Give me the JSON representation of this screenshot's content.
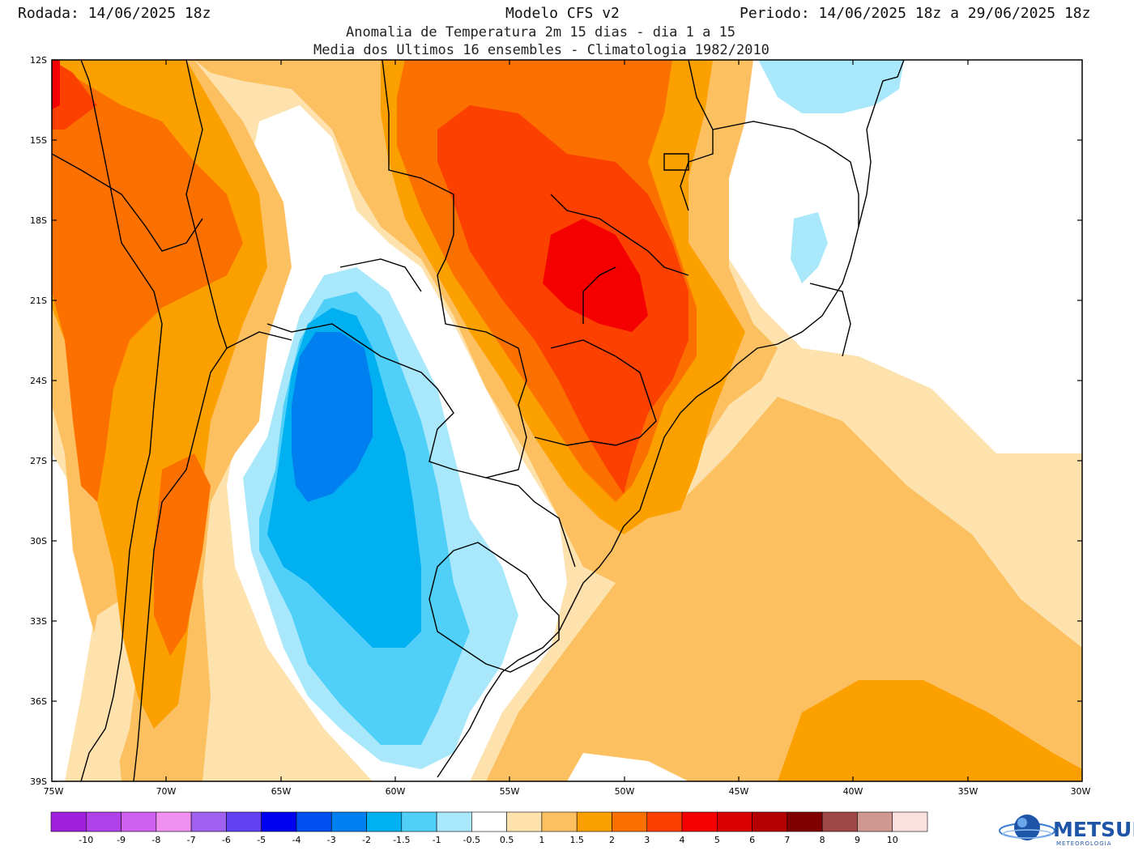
{
  "header": {
    "run_label": "Rodada: 14/06/2025 18z",
    "model_label": "Modelo CFS v2",
    "period_label": "Periodo: 14/06/2025 18z a 29/06/2025 18z",
    "subtitle_1": "Anomalia de Temperatura 2m 15 dias - dia 1 a 15",
    "subtitle_2": "Media dos Ultimos 16 ensembles - Climatologia 1982/2010"
  },
  "axes": {
    "lat_labels": [
      "12S",
      "15S",
      "18S",
      "21S",
      "24S",
      "27S",
      "30S",
      "33S",
      "36S",
      "39S"
    ],
    "lon_labels": [
      "75W",
      "70W",
      "65W",
      "60W",
      "55W",
      "50W",
      "45W",
      "40W",
      "35W",
      "30W"
    ]
  },
  "legend": {
    "colors": [
      "#a020e0",
      "#b040e8",
      "#d060f0",
      "#f090f0",
      "#a060f0",
      "#6040f0",
      "#0000f0",
      "#0050f0",
      "#0080f0",
      "#00b0f0",
      "#50d0f8",
      "#a8e8fa",
      "#ffffff",
      "#fde2ae",
      "#fcc060",
      "#fca000",
      "#fc7000",
      "#fc4000",
      "#f40000",
      "#d80000",
      "#b40000",
      "#800000",
      "#a04848",
      "#d09890",
      "#fce0e0"
    ],
    "labels": [
      "-10",
      "-9",
      "-8",
      "-7",
      "-6",
      "-5",
      "-4",
      "-3",
      "-2",
      "-1.5",
      "-1",
      "-0.5",
      "0.5",
      "1",
      "1.5",
      "2",
      "3",
      "4",
      "5",
      "6",
      "7",
      "8",
      "9",
      "10"
    ]
  },
  "colors": {
    "warm_1": "#fde2ae",
    "warm_2": "#fcc060",
    "warm_3": "#fca000",
    "warm_4": "#fc7000",
    "warm_5": "#fc4000",
    "warm_6": "#f40000",
    "cold_1": "#a8e8fa",
    "cold_2": "#50d0f8",
    "cold_3": "#00b0f0",
    "cold_4": "#0080f0"
  },
  "logo": {
    "name": "METSUL",
    "subtitle": "METEOROLOGIA"
  }
}
